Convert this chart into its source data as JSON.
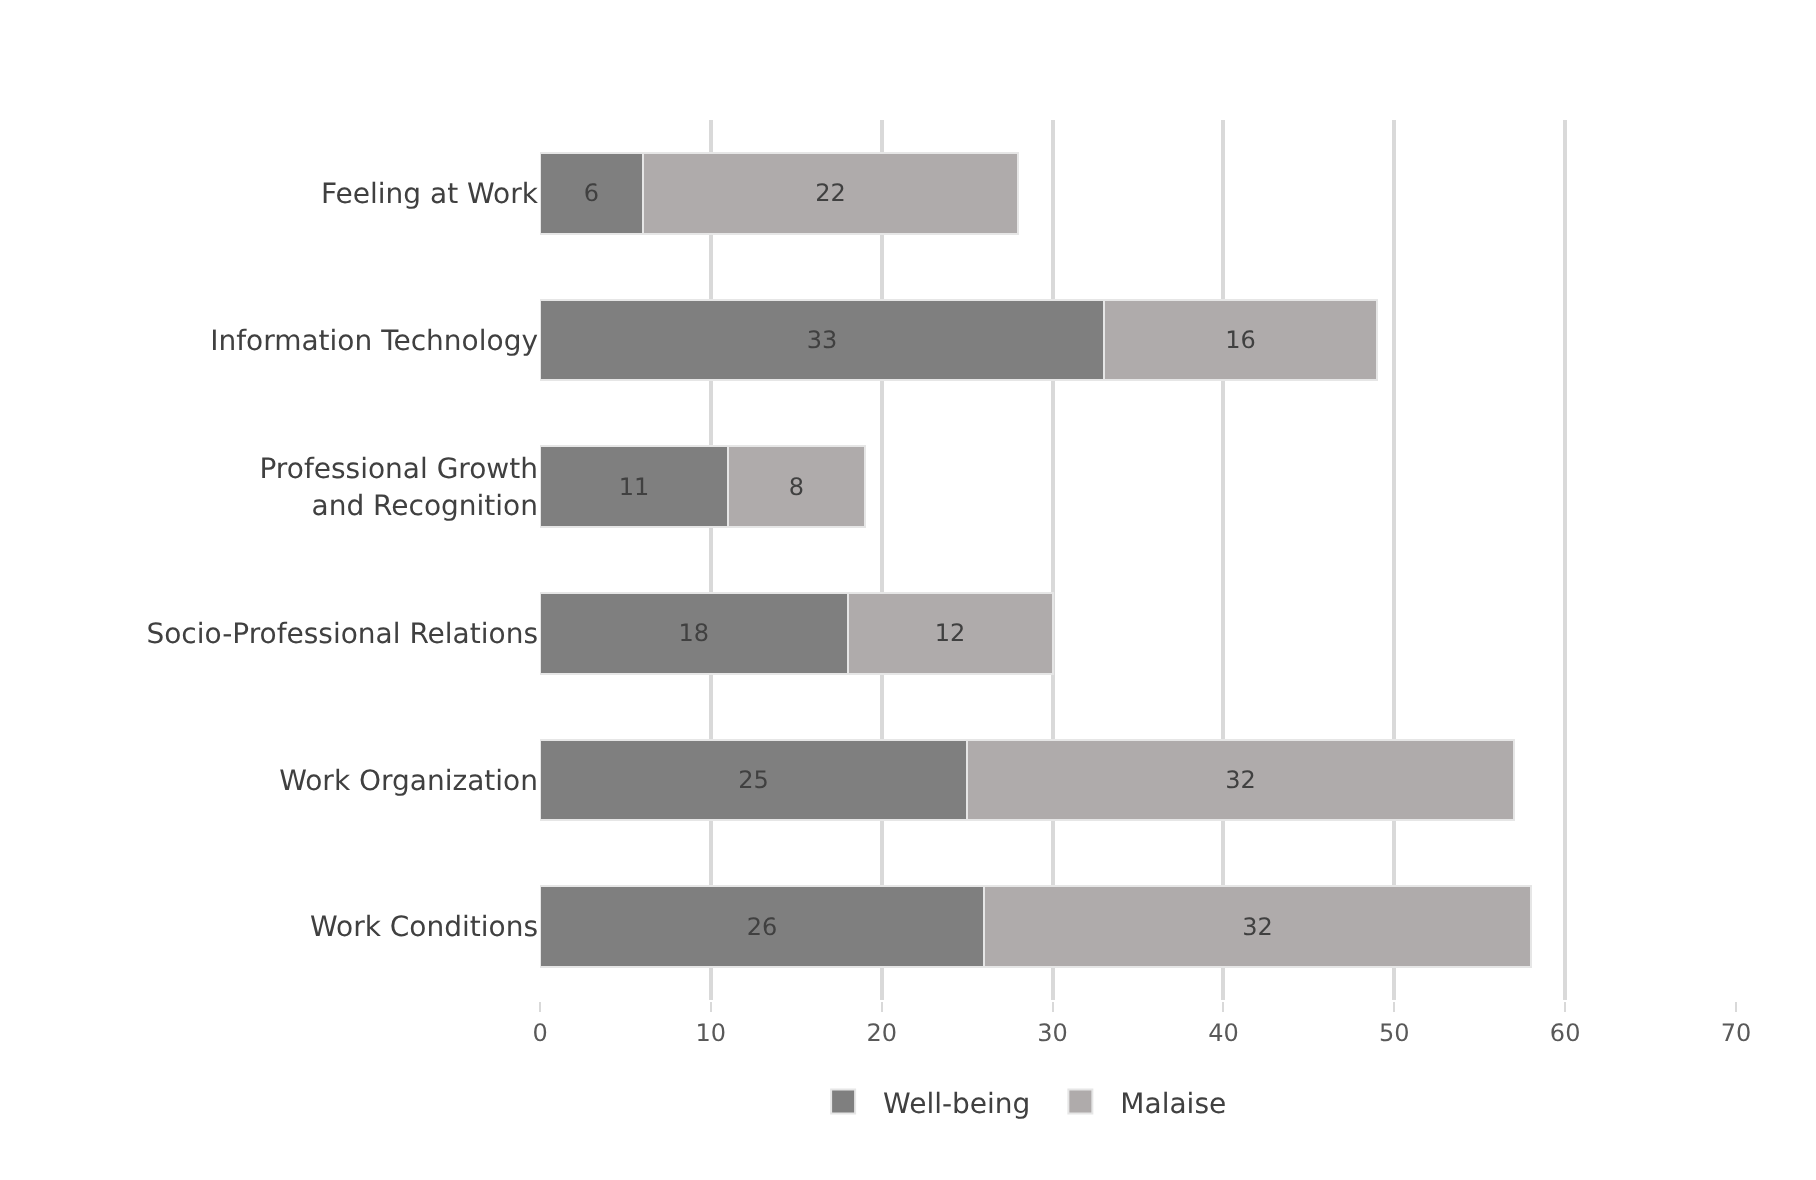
{
  "chart_data": {
    "type": "bar",
    "orientation": "horizontal",
    "stacked": true,
    "categories": [
      "Feeling at Work",
      "Information Technology",
      "Professional Growth\nand Recognition",
      "Socio-Professional Relations",
      "Work Organization",
      "Work Conditions"
    ],
    "series": [
      {
        "name": "Well-being",
        "color": "#7f7f7f",
        "values": [
          6,
          33,
          11,
          18,
          25,
          26
        ]
      },
      {
        "name": "Malaise",
        "color": "#afabab",
        "values": [
          22,
          16,
          8,
          12,
          32,
          32
        ]
      }
    ],
    "xlim": [
      0,
      70
    ],
    "xticks": [
      0,
      10,
      20,
      30,
      40,
      50,
      60,
      70
    ],
    "grid": "x",
    "legend": "bottom",
    "data_labels": true
  }
}
